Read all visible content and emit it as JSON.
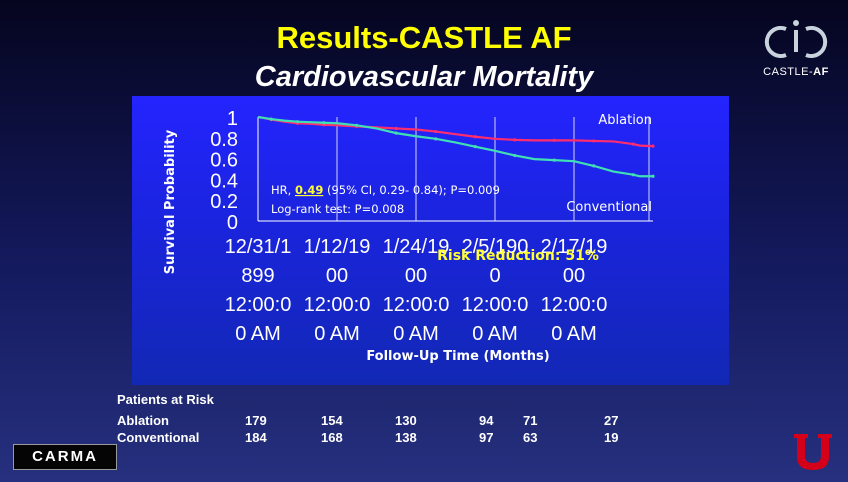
{
  "slide": {
    "title": "Results-CASTLE AF",
    "subtitle": "Cardiovascular Mortality"
  },
  "logos": {
    "castle_wordmark_prefix": "CASTLE-",
    "castle_wordmark_bold": "AF",
    "carma_label": "CARMA",
    "university_logo_icon": "block-u-icon"
  },
  "chart_data": {
    "type": "line",
    "xlabel": "Follow-Up Time (Months)",
    "ylabel": "Survival Probability",
    "ylim": [
      0,
      1
    ],
    "yticks": [
      "1",
      "0.8",
      "0.6",
      "0.4",
      "0.2",
      "0"
    ],
    "yticks_values": [
      1,
      0.8,
      0.6,
      0.4,
      0.2,
      0
    ],
    "xtick_lines": [
      [
        "12/31/1",
        "899",
        "12:00:0",
        "0 AM"
      ],
      [
        "1/12/19",
        "00",
        "12:00:0",
        "0 AM"
      ],
      [
        "1/24/19",
        "00",
        "12:00:0",
        "0 AM"
      ],
      [
        "2/5/190",
        "0",
        "12:00:0",
        "0 AM"
      ],
      [
        "2/17/19",
        "00",
        "12:00:0",
        "0 AM"
      ]
    ],
    "xtick_positions": [
      0,
      12,
      24,
      36,
      48
    ],
    "xlim": [
      0,
      60
    ],
    "grid": "vertical",
    "series": [
      {
        "name": "Ablation",
        "color": "#ff2d6e",
        "x": [
          0,
          1,
          2,
          4,
          6,
          8,
          10,
          12,
          15,
          18,
          21,
          24,
          27,
          30,
          33,
          36,
          39,
          42,
          45,
          48,
          51,
          54,
          57,
          58,
          60
        ],
        "y": [
          1.0,
          0.99,
          0.975,
          0.955,
          0.94,
          0.935,
          0.925,
          0.92,
          0.91,
          0.9,
          0.89,
          0.88,
          0.86,
          0.835,
          0.81,
          0.79,
          0.78,
          0.775,
          0.775,
          0.775,
          0.77,
          0.765,
          0.74,
          0.725,
          0.72
        ]
      },
      {
        "name": "Conventional",
        "color": "#40e0b4",
        "x": [
          0,
          1,
          2,
          4,
          6,
          8,
          10,
          12,
          15,
          18,
          21,
          24,
          27,
          30,
          33,
          36,
          39,
          42,
          45,
          48,
          51,
          54,
          57,
          58,
          60
        ],
        "y": [
          1.0,
          0.99,
          0.98,
          0.965,
          0.955,
          0.95,
          0.945,
          0.94,
          0.92,
          0.89,
          0.845,
          0.815,
          0.79,
          0.755,
          0.715,
          0.675,
          0.63,
          0.595,
          0.585,
          0.575,
          0.53,
          0.475,
          0.445,
          0.43,
          0.43
        ]
      }
    ],
    "annotations": {
      "hr_prefix": "HR, ",
      "hr_value": "0.49",
      "hr_rest": " (95% CI, 0.29- 0.84); P=0.009",
      "logrank": "Log-rank test: P=0.008",
      "risk_reduction": "Risk Reduction: 51%"
    },
    "annotation_color": "#ffff33",
    "line_labels": [
      "Ablation",
      "Conventional"
    ]
  },
  "patients_at_risk": {
    "title": "Patients at Risk",
    "rows": [
      {
        "label": "Ablation",
        "values": [
          "179",
          "154",
          "130",
          "94",
          "71",
          "27"
        ]
      },
      {
        "label": "Conventional",
        "values": [
          "184",
          "168",
          "138",
          "97",
          "63",
          "19"
        ]
      }
    ]
  }
}
